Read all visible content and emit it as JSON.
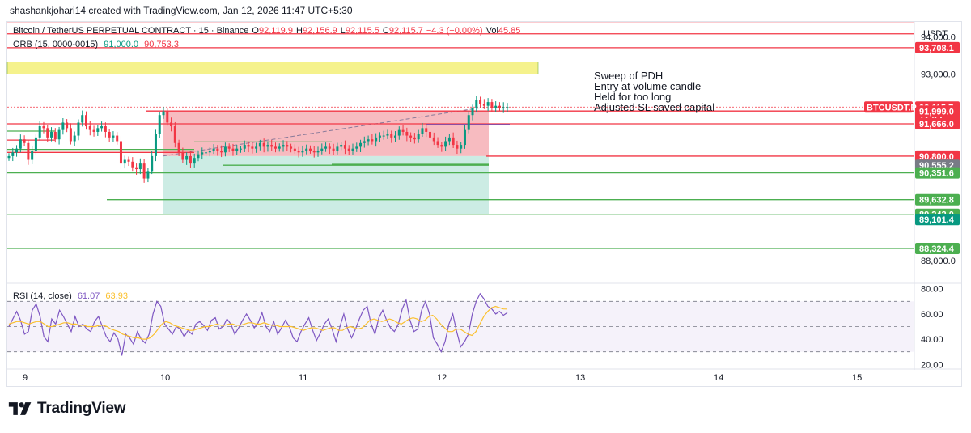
{
  "header": {
    "text": "shashankjohari14 created with TradingView.com, Jan 12, 2026 11:47 UTC+5:30"
  },
  "symbol_legend": {
    "name": "Bitcoin / TetherUS PERPETUAL CONTRACT · 15 · Binance",
    "o_label": "O",
    "o_value": "92,119.9",
    "h_label": "H",
    "h_value": "92,156.9",
    "l_label": "L",
    "l_value": "92,115.5",
    "c_label": "C",
    "c_value": "92,115.7",
    "change": "−4.3 (−0.00%)",
    "vol_label": "Vol",
    "vol_value": "45.85"
  },
  "orb_legend": {
    "name": "ORB (15, 0000-0015)",
    "high": "91,000.0",
    "low": "90,753.3"
  },
  "rsi_legend": {
    "name": "RSI (14, close)",
    "rsi": "61.07",
    "ma": "63.93"
  },
  "currency": "USDT",
  "annotation": [
    "Sweep of PDH",
    "Entry at volume candle",
    "Held for too long",
    "Adjusted SL saved capital"
  ],
  "brand": {
    "name": "TradingView"
  },
  "colors": {
    "red": "#f23645",
    "green": "#089981",
    "level_green": "#4caf50",
    "blue": "#2962ff",
    "candle_up": "#089981",
    "candle_down": "#f23645",
    "rsi": "#7e57c2",
    "rsi_ma": "#fbc02d",
    "zone_yellow": "#f5f28c",
    "stop_zone": "#f6b4b9",
    "target_zone": "#c9ebe3"
  },
  "chart_data": [
    {
      "type": "candlestick",
      "title": "Bitcoin / TetherUS PERPETUAL CONTRACT · 15 · Binance",
      "x_ticks": [
        "9",
        "10",
        "11",
        "12",
        "13",
        "14",
        "15"
      ],
      "y_ticks": [
        "94,000.0",
        "93,000.0",
        "88,000.0"
      ],
      "ylim": [
        87500,
        94400
      ],
      "price_labels": [
        {
          "value": 93708.1,
          "label": "93,708.1",
          "kind": "red"
        },
        {
          "value": 92115.7,
          "label": "92,115.7",
          "sub": "12:45",
          "kind": "red"
        },
        {
          "value": 92009.0,
          "label": "92,009.0",
          "kind": "red"
        },
        {
          "value": 91999.0,
          "label": "91,999.0",
          "kind": "red"
        },
        {
          "value": 91666.0,
          "label": "91,666.0",
          "kind": "red"
        },
        {
          "value": 90800.0,
          "label": "90,800.0",
          "kind": "red"
        },
        {
          "value": 90555.2,
          "label": "90,555.2",
          "kind": "gray"
        },
        {
          "value": 90351.6,
          "label": "90,351.6",
          "kind": "green"
        },
        {
          "value": 89632.8,
          "label": "89,632.8",
          "kind": "green"
        },
        {
          "value": 89242.0,
          "label": "89,242.0",
          "kind": "green"
        },
        {
          "value": 89101.4,
          "label": "89,101.4",
          "kind": "teal"
        },
        {
          "value": 88324.4,
          "label": "88,324.4",
          "kind": "green"
        }
      ],
      "symbol_tag": "BTCUSDT.P",
      "series_close": [
        90800,
        90900,
        91000,
        91250,
        91150,
        90700,
        90950,
        91300,
        91600,
        91550,
        91300,
        91450,
        91250,
        91500,
        91700,
        91550,
        91200,
        91350,
        91700,
        91900,
        91600,
        91500,
        91450,
        91550,
        91600,
        91450,
        91300,
        91350,
        91200,
        90600,
        90700,
        90650,
        90500,
        90450,
        90600,
        90200,
        90400,
        90800,
        91400,
        91900,
        92000,
        91700,
        91600,
        91150,
        90900,
        90700,
        90800,
        90600,
        90750,
        90850,
        90900,
        90900,
        90950,
        91000,
        90950,
        90900,
        91050,
        91000,
        90950,
        91000,
        91000,
        91100,
        91050,
        91000,
        91050,
        91150,
        91050,
        91100,
        91050,
        91000,
        91050,
        91100,
        91050,
        91000,
        90950,
        90900,
        90950,
        91000,
        90950,
        90900,
        90950,
        91000,
        91050,
        91000,
        90950,
        91050,
        91100,
        91000,
        90950,
        91000,
        91050,
        91150,
        91200,
        91250,
        91200,
        91300,
        91350,
        91350,
        91400,
        91300,
        91350,
        91500,
        91450,
        91350,
        91300,
        91250,
        91400,
        91550,
        91450,
        91300,
        91200,
        91100,
        91050,
        91200,
        91300,
        91100,
        91000,
        91100,
        91500,
        91900,
        92100,
        92300,
        92200,
        92150,
        92250,
        92100,
        92150,
        92100,
        92110,
        92115.7
      ]
    },
    {
      "type": "line",
      "title": "RSI (14, close)",
      "y_ticks": [
        "80.00",
        "60.00",
        "40.00",
        "20.00"
      ],
      "ylim": [
        17,
        83
      ],
      "bands": [
        30,
        50,
        70
      ],
      "series": [
        {
          "name": "RSI (14, close)",
          "values": [
            50,
            56,
            62,
            55,
            44,
            46,
            63,
            68,
            58,
            42,
            38,
            56,
            52,
            63,
            58,
            52,
            46,
            58,
            50,
            52,
            48,
            46,
            54,
            58,
            50,
            42,
            38,
            45,
            40,
            27,
            44,
            41,
            36,
            46,
            40,
            37,
            44,
            60,
            70,
            66,
            52,
            48,
            44,
            50,
            48,
            42,
            47,
            44,
            52,
            54,
            51,
            47,
            55,
            57,
            48,
            50,
            56,
            52,
            44,
            49,
            55,
            60,
            55,
            49,
            53,
            61,
            50,
            46,
            54,
            44,
            49,
            55,
            50,
            41,
            38,
            46,
            52,
            57,
            47,
            39,
            45,
            52,
            56,
            48,
            38,
            50,
            60,
            48,
            41,
            48,
            56,
            63,
            66,
            52,
            44,
            57,
            63,
            55,
            49,
            46,
            52,
            64,
            71,
            55,
            46,
            48,
            63,
            70,
            60,
            41,
            36,
            30,
            38,
            52,
            60,
            46,
            34,
            38,
            44,
            60,
            70,
            76,
            72,
            66,
            64,
            60,
            62,
            59,
            61.07
          ]
        },
        {
          "name": "MA",
          "values": [
            52,
            53,
            54,
            54,
            53,
            52,
            53,
            54,
            54,
            52,
            50,
            50,
            51,
            52,
            53,
            53,
            52,
            52,
            51,
            51,
            50,
            50,
            50,
            51,
            51,
            50,
            48,
            47,
            46,
            44,
            43,
            42,
            41,
            41,
            40,
            40,
            41,
            44,
            48,
            52,
            54,
            53,
            51,
            50,
            49,
            48,
            47,
            47,
            48,
            49,
            50,
            50,
            51,
            52,
            51,
            51,
            52,
            52,
            51,
            51,
            52,
            53,
            53,
            52,
            52,
            53,
            52,
            51,
            51,
            50,
            50,
            50,
            50,
            49,
            48,
            47,
            48,
            49,
            49,
            48,
            47,
            48,
            49,
            49,
            47,
            47,
            49,
            50,
            49,
            48,
            49,
            52,
            55,
            56,
            55,
            54,
            55,
            56,
            55,
            53,
            52,
            54,
            56,
            57,
            56,
            54,
            55,
            58,
            59,
            56,
            52,
            49,
            46,
            46,
            48,
            48,
            46,
            44,
            43,
            46,
            52,
            58,
            62,
            65,
            66,
            65,
            64,
            63.93
          ]
        }
      ]
    }
  ]
}
